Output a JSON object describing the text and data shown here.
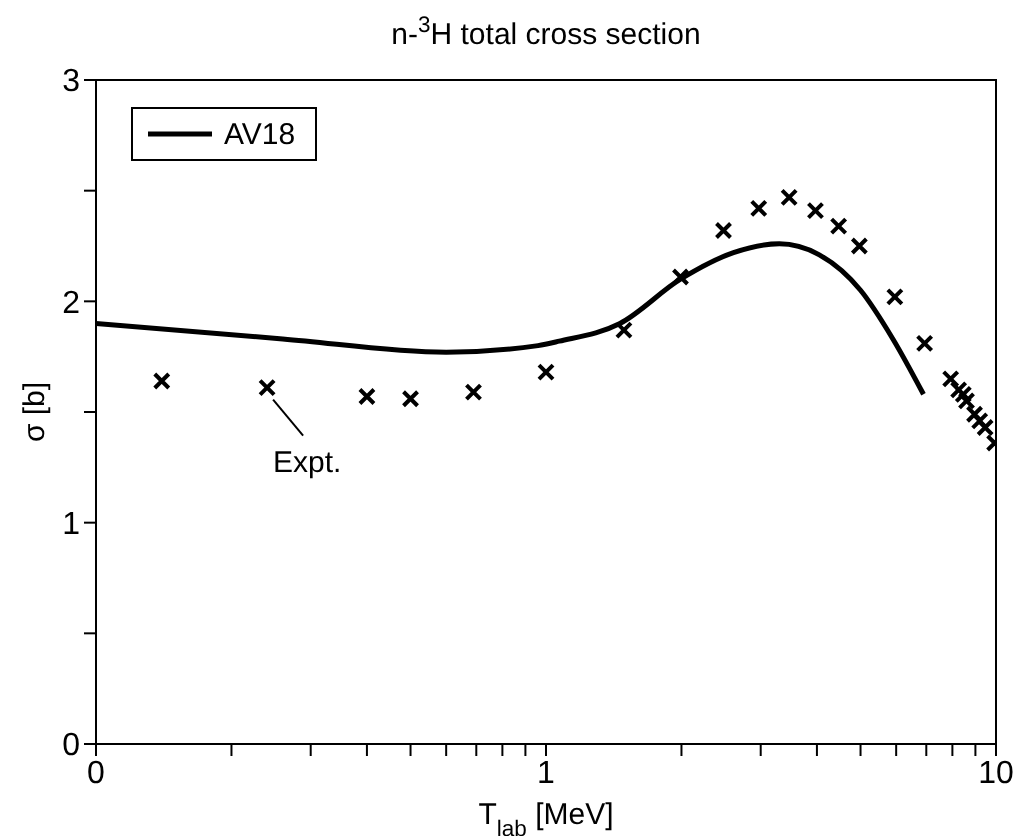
{
  "chart_data": {
    "type": "line",
    "title": "n-$^{3}$H total cross section",
    "xlabel": "T$_{lab}$ [MeV]",
    "ylabel": "σ [b]",
    "log": "x",
    "xlim": [
      0.1,
      10
    ],
    "xticks": [
      {
        "value": 0.1,
        "label": "0"
      },
      {
        "value": 0.2,
        "label": null
      },
      {
        "value": 0.3,
        "label": null
      },
      {
        "value": 0.4,
        "label": null
      },
      {
        "value": 0.5,
        "label": null
      },
      {
        "value": 0.6,
        "label": null
      },
      {
        "value": 0.7,
        "label": null
      },
      {
        "value": 0.8,
        "label": null
      },
      {
        "value": 0.9,
        "label": null
      },
      1,
      {
        "value": 2,
        "label": null
      },
      {
        "value": 3,
        "label": null
      },
      {
        "value": 4,
        "label": null
      },
      {
        "value": 5,
        "label": null
      },
      {
        "value": 6,
        "label": null
      },
      {
        "value": 7,
        "label": null
      },
      {
        "value": 8,
        "label": null
      },
      {
        "value": 9,
        "label": null
      },
      10
    ],
    "ylim": [
      0,
      3
    ],
    "yticks": [
      0,
      {
        "value": 0.5,
        "label": null
      },
      1,
      {
        "value": 1.5,
        "label": null
      },
      2,
      {
        "value": 2.5,
        "label": null
      },
      3
    ],
    "grid": false,
    "legend": "top left",
    "annotations": [
      {
        "text": "Expt.",
        "x": 0.24,
        "y": 1.61
      }
    ],
    "series": [
      {
        "name": "AV18",
        "color": "#000000",
        "marker": "none",
        "line_style": "solid",
        "x": [
          0.1,
          0.26,
          0.6,
          0.96,
          1.07,
          1.46,
          1.99,
          2.61,
          3.3,
          4.05,
          5.0,
          5.9,
          6.9
        ],
        "values": [
          1.9,
          1.83,
          1.77,
          1.8,
          1.82,
          1.9,
          2.1,
          2.22,
          2.26,
          2.21,
          2.05,
          1.83,
          1.58
        ]
      },
      {
        "type": "scatter",
        "color": "#000000",
        "marker": "cross",
        "x": [
          0.14,
          0.24,
          0.4,
          0.5,
          0.69,
          1.0,
          1.49,
          1.99,
          2.48,
          2.97,
          3.47,
          3.97,
          4.47,
          4.97,
          5.96,
          6.94,
          7.93,
          8.26,
          8.46,
          8.6,
          8.96,
          9.2,
          9.46,
          9.93
        ],
        "values": [
          1.64,
          1.61,
          1.57,
          1.56,
          1.59,
          1.68,
          1.87,
          2.11,
          2.32,
          2.42,
          2.47,
          2.41,
          2.34,
          2.25,
          2.02,
          1.81,
          1.65,
          1.6,
          1.58,
          1.55,
          1.49,
          1.46,
          1.43,
          1.36
        ]
      }
    ]
  }
}
